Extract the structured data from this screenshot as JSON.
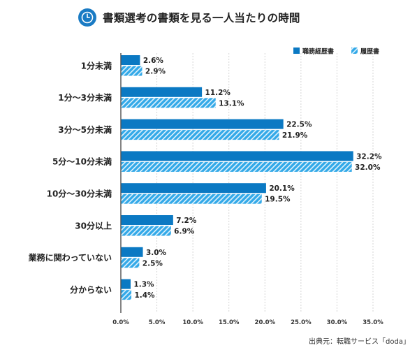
{
  "title": "書類選考の書類を見る一人当たりの時間",
  "source": "出典元：転職サービス「doda」",
  "colors": {
    "series1": "#0b79c3",
    "series2": "#33a9e8",
    "grid": "#d6d6d6",
    "axis": "#333333",
    "title_icon": "#1a7bc4"
  },
  "chart_data": {
    "type": "bar",
    "orientation": "horizontal",
    "categories": [
      "1分未満",
      "1分〜3分未満",
      "3分〜5分未満",
      "5分〜10分未満",
      "10分〜30分未満",
      "30分以上",
      "業務に関わっていない",
      "分からない"
    ],
    "series": [
      {
        "name": "職務経歴書",
        "values": [
          2.6,
          11.2,
          22.5,
          32.2,
          20.1,
          7.2,
          3.0,
          1.3
        ],
        "pattern": "solid"
      },
      {
        "name": "履歴書",
        "values": [
          2.9,
          13.1,
          21.9,
          32.0,
          19.5,
          6.9,
          2.5,
          1.4
        ],
        "pattern": "hatched"
      }
    ],
    "value_labels": [
      [
        "2.6%",
        "11.2%",
        "22.5%",
        "32.2%",
        "20.1%",
        "7.2%",
        "3.0%",
        "1.3%"
      ],
      [
        "2.9%",
        "13.1%",
        "21.9%",
        "32.0%",
        "19.5%",
        "6.9%",
        "2.5%",
        "1.4%"
      ]
    ],
    "xlim": [
      0,
      35
    ],
    "xticks": [
      0,
      5,
      10,
      15,
      20,
      25,
      30,
      35
    ],
    "xtick_labels": [
      "0.0%",
      "5.0%",
      "10.0%",
      "15.0%",
      "20.0%",
      "25.0%",
      "30.0%",
      "35.0%"
    ],
    "grid": true,
    "legend_position": "top-right"
  }
}
